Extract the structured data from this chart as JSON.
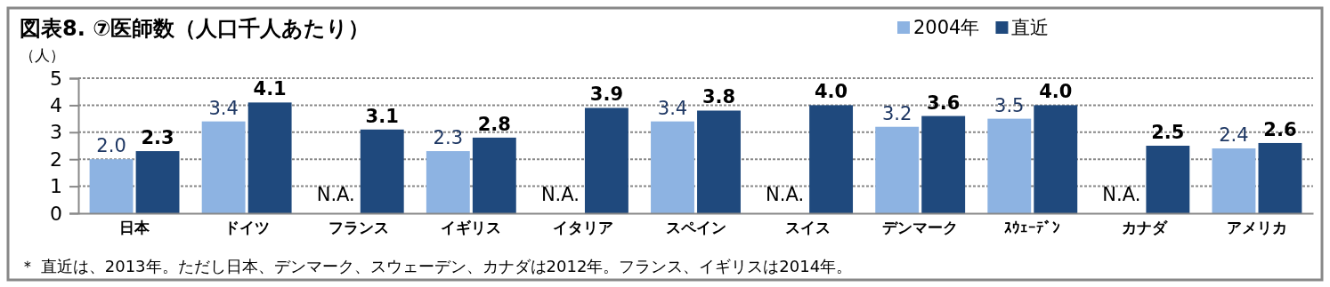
{
  "chart_data": {
    "type": "bar",
    "title": "図表8. ⑦医師数（人口千人あたり）",
    "ylabel": "（人）",
    "categories": [
      "日本",
      "ドイツ",
      "フランス",
      "イギリス",
      "イタリア",
      "スペイン",
      "スイス",
      "デンマーク",
      "ｽｳｪｰﾃﾞﾝ",
      "カナダ",
      "アメリカ"
    ],
    "series": [
      {
        "name": "2004年",
        "color": "#8db3e2",
        "values": [
          2.0,
          3.4,
          null,
          2.3,
          null,
          3.4,
          null,
          3.2,
          3.5,
          null,
          2.4
        ],
        "value_labels": [
          "2.0",
          "3.4",
          "N.A.",
          "2.3",
          "N.A.",
          "3.4",
          "N.A.",
          "3.2",
          "3.5",
          "N.A.",
          "2.4"
        ]
      },
      {
        "name": "直近",
        "color": "#1f497d",
        "values": [
          2.3,
          4.1,
          3.1,
          2.8,
          3.9,
          3.8,
          4.0,
          3.6,
          4.0,
          2.5,
          2.6
        ],
        "value_labels": [
          "2.3",
          "4.1",
          "3.1",
          "2.8",
          "3.9",
          "3.8",
          "4.0",
          "3.6",
          "4.0",
          "2.5",
          "2.6"
        ]
      }
    ],
    "ylim": [
      0,
      5
    ],
    "yticks": [
      0,
      1,
      2,
      3,
      4,
      5
    ],
    "grid": "y",
    "legend": "top right",
    "annotations": [
      "＊ 直近は、2013年。ただし日本、デンマーク、スウェーデン、カナダは2012年。フランス、イギリスは2014年。"
    ]
  }
}
